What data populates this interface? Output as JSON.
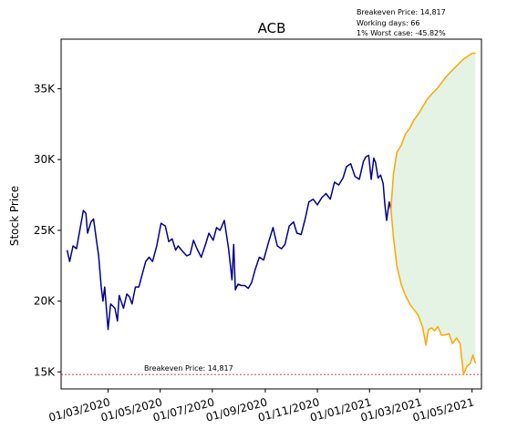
{
  "chart_data": {
    "type": "line",
    "title": "ACB",
    "ylabel": "Stock Price",
    "xlabel": "",
    "ylim": [
      13800,
      38500
    ],
    "xlim": [
      "2020-01-06",
      "2021-05-12"
    ],
    "x_ticks": [
      "01/03/2020",
      "01/05/2020",
      "01/07/2020",
      "01/09/2020",
      "01/11/2020",
      "01/01/2021",
      "01/03/2021",
      "01/05/2021"
    ],
    "y_ticks": [
      {
        "value": 15000,
        "label": "15K"
      },
      {
        "value": 20000,
        "label": "20K"
      },
      {
        "value": 25000,
        "label": "25K"
      },
      {
        "value": 30000,
        "label": "30K"
      },
      {
        "value": 35000,
        "label": "35K"
      }
    ],
    "grid": false,
    "annotation_lines": [
      "Breakeven Price: 14,817",
      "Working days: 66",
      "1% Worst case: -45.82%"
    ],
    "breakeven": {
      "value": 14817,
      "label": "Breakeven Price: 14,817",
      "color": "#d62728"
    },
    "history": {
      "color": "#00008b",
      "x": [
        "2020-01-13",
        "2020-01-16",
        "2020-01-20",
        "2020-01-24",
        "2020-02-01",
        "2020-02-04",
        "2020-02-06",
        "2020-02-10",
        "2020-02-13",
        "2020-02-17",
        "2020-02-19",
        "2020-02-22",
        "2020-02-24",
        "2020-02-26",
        "2020-03-01",
        "2020-03-04",
        "2020-03-09",
        "2020-03-12",
        "2020-03-14",
        "2020-03-19",
        "2020-03-23",
        "2020-03-26",
        "2020-03-29",
        "2020-04-02",
        "2020-04-06",
        "2020-04-10",
        "2020-04-14",
        "2020-04-18",
        "2020-04-22",
        "2020-04-27",
        "2020-05-02",
        "2020-05-07",
        "2020-05-11",
        "2020-05-15",
        "2020-05-19",
        "2020-05-22",
        "2020-05-26",
        "2020-06-01",
        "2020-06-05",
        "2020-06-09",
        "2020-06-13",
        "2020-06-18",
        "2020-06-23",
        "2020-06-27",
        "2020-07-02",
        "2020-07-06",
        "2020-07-10",
        "2020-07-15",
        "2020-07-20",
        "2020-07-24",
        "2020-07-26",
        "2020-07-28",
        "2020-07-31",
        "2020-08-04",
        "2020-08-08",
        "2020-08-12",
        "2020-08-16",
        "2020-08-20",
        "2020-08-25",
        "2020-08-30",
        "2020-09-04",
        "2020-09-10",
        "2020-09-15",
        "2020-09-20",
        "2020-09-24",
        "2020-09-29",
        "2020-10-04",
        "2020-10-08",
        "2020-10-13",
        "2020-10-18",
        "2020-10-22",
        "2020-10-27",
        "2020-11-01",
        "2020-11-06",
        "2020-11-11",
        "2020-11-16",
        "2020-11-21",
        "2020-11-26",
        "2020-12-01",
        "2020-12-05",
        "2020-12-10",
        "2020-12-15",
        "2020-12-20",
        "2020-12-25",
        "2020-12-28",
        "2020-12-31",
        "2021-01-03",
        "2021-01-06",
        "2021-01-08",
        "2021-01-11",
        "2021-01-14",
        "2021-01-17",
        "2021-01-19",
        "2021-01-21",
        "2021-01-24",
        "2021-01-26"
      ],
      "y": [
        23600,
        22800,
        23900,
        23700,
        26400,
        26200,
        24800,
        25600,
        25800,
        24000,
        23200,
        21000,
        20000,
        21000,
        18000,
        19800,
        19500,
        18600,
        20400,
        19500,
        20500,
        20300,
        19800,
        21000,
        21000,
        21900,
        22800,
        23100,
        22800,
        23900,
        25500,
        25300,
        24200,
        24400,
        23600,
        23900,
        23600,
        23200,
        23300,
        24300,
        23700,
        23100,
        24000,
        24800,
        24300,
        25200,
        25000,
        25700,
        23700,
        21500,
        24000,
        20800,
        21200,
        21100,
        21100,
        20900,
        21300,
        22200,
        23100,
        22900,
        24000,
        25200,
        23900,
        23700,
        24000,
        25300,
        25600,
        24800,
        24700,
        25900,
        27000,
        27200,
        26800,
        27300,
        27600,
        27200,
        28400,
        28200,
        28700,
        29500,
        29700,
        28800,
        28600,
        29900,
        30200,
        30300,
        28600,
        30100,
        29800,
        28700,
        28900,
        28300,
        26800,
        25700,
        27000,
        26500
      ]
    },
    "forecast_upper": {
      "color": "#ffa500",
      "x": [
        "2021-01-26",
        "2021-01-29",
        "2021-02-02",
        "2021-02-07",
        "2021-02-12",
        "2021-02-17",
        "2021-02-22",
        "2021-02-27",
        "2021-03-04",
        "2021-03-10",
        "2021-03-16",
        "2021-03-21",
        "2021-03-26",
        "2021-03-31",
        "2021-04-06",
        "2021-04-11",
        "2021-04-16",
        "2021-04-21",
        "2021-04-26",
        "2021-05-01",
        "2021-05-05"
      ],
      "y": [
        26500,
        29000,
        30500,
        31000,
        31800,
        32200,
        32800,
        33200,
        33700,
        34300,
        34700,
        35000,
        35400,
        35800,
        36200,
        36500,
        36800,
        37100,
        37300,
        37500,
        37500
      ]
    },
    "forecast_lower": {
      "color": "#ffa500",
      "x": [
        "2021-01-26",
        "2021-01-29",
        "2021-02-02",
        "2021-02-07",
        "2021-02-12",
        "2021-02-17",
        "2021-02-22",
        "2021-02-27",
        "2021-03-04",
        "2021-03-08",
        "2021-03-11",
        "2021-03-15",
        "2021-03-18",
        "2021-03-22",
        "2021-03-26",
        "2021-03-30",
        "2021-04-04",
        "2021-04-08",
        "2021-04-13",
        "2021-04-17",
        "2021-04-21",
        "2021-04-25",
        "2021-04-29",
        "2021-05-02",
        "2021-05-05"
      ],
      "y": [
        26500,
        24500,
        22500,
        21200,
        20400,
        19800,
        19400,
        19000,
        18200,
        16900,
        18000,
        18100,
        17900,
        18200,
        17600,
        17600,
        17700,
        17000,
        17400,
        17000,
        14800,
        15400,
        15600,
        16200,
        15600
      ]
    },
    "band_color": "#2ca02c"
  }
}
